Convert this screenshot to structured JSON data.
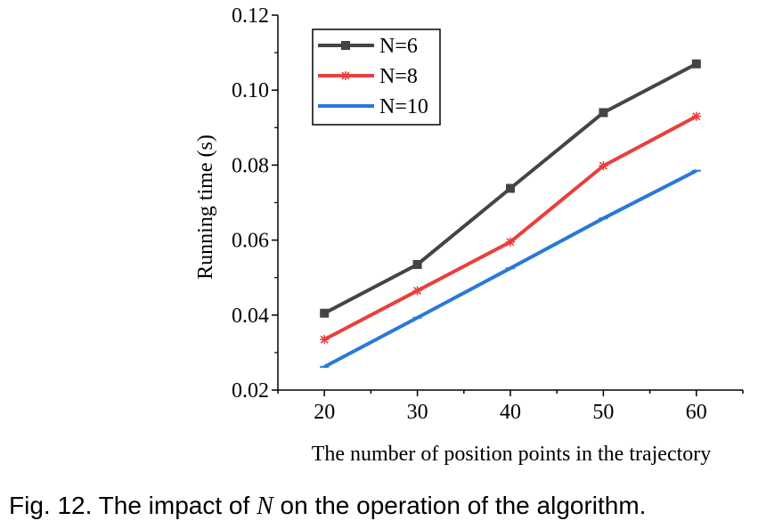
{
  "chart_data": {
    "type": "line",
    "title": "",
    "xlabel": "The number of position points in the trajectory",
    "ylabel": "Running time (s)",
    "x": [
      20,
      30,
      40,
      50,
      60
    ],
    "x_tick_labels": [
      "20",
      "30",
      "40",
      "50",
      "60"
    ],
    "xlim": [
      15,
      65
    ],
    "ylim": [
      0.02,
      0.12
    ],
    "y_ticks": [
      0.02,
      0.04,
      0.06,
      0.08,
      0.1,
      0.12
    ],
    "y_tick_labels": [
      "0.02",
      "0.04",
      "0.06",
      "0.08",
      "0.10",
      "0.12"
    ],
    "grid": false,
    "legend_position": "top-left",
    "series": [
      {
        "name": "N=6",
        "values": [
          0.0405,
          0.0535,
          0.0738,
          0.094,
          0.107
        ],
        "color": "#444444",
        "marker": "square"
      },
      {
        "name": "N=8",
        "values": [
          0.0335,
          0.0465,
          0.0595,
          0.0798,
          0.093
        ],
        "color": "#e8403c",
        "marker": "asterisk"
      },
      {
        "name": "N=10",
        "values": [
          0.0262,
          0.0393,
          0.0525,
          0.0658,
          0.0785
        ],
        "color": "#2a78d8",
        "marker": "dash"
      }
    ]
  },
  "caption": {
    "prefix": "Fig. 12. The impact of ",
    "variable": "N",
    "suffix": " on the operation of the algorithm."
  }
}
